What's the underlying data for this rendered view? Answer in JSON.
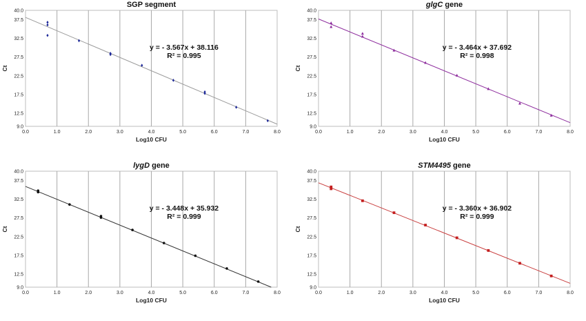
{
  "chart_data": [
    {
      "type": "scatter",
      "title_parts": [
        {
          "text": "SGP",
          "italic": false
        },
        {
          "text": " segment",
          "italic": false
        }
      ],
      "xlabel": "Log10 CFU",
      "ylabel": "Ct",
      "xlim": [
        0,
        8
      ],
      "ylim": [
        9,
        40
      ],
      "xticks": [
        "0.0",
        "1.0",
        "2.0",
        "3.0",
        "4.0",
        "5.0",
        "6.0",
        "7.0",
        "8.0"
      ],
      "yticks": [
        "40.0",
        "37.5",
        "32.5",
        "27.5",
        "22.5",
        "17.5",
        "12.5",
        "9.0"
      ],
      "grid": "vertical",
      "equation": "y = - 3.567x + 38.116",
      "r2": "R² = 0.995",
      "fit": {
        "slope": -3.567,
        "intercept": 38.116
      },
      "color": "#1f2a9a",
      "line_color": "#9a9a9a",
      "marker": "diamond",
      "x": [
        0.7,
        0.7,
        0.7,
        1.7,
        2.7,
        2.7,
        3.7,
        4.7,
        5.7,
        5.7,
        6.7,
        7.7
      ],
      "y": [
        36.8,
        36.1,
        33.3,
        31.9,
        28.5,
        28.2,
        25.3,
        21.3,
        18.2,
        17.8,
        14.1,
        10.5
      ]
    },
    {
      "type": "scatter",
      "title_parts": [
        {
          "text": "glgC",
          "italic": true
        },
        {
          "text": " gene",
          "italic": false
        }
      ],
      "xlabel": "Log10 CFU",
      "ylabel": "Ct",
      "xlim": [
        0,
        8
      ],
      "ylim": [
        9,
        40
      ],
      "xticks": [
        "0.0",
        "1.0",
        "2.0",
        "3.0",
        "4.0",
        "5.0",
        "6.0",
        "7.0",
        "8.0"
      ],
      "yticks": [
        "40.0",
        "37.5",
        "32.5",
        "27.5",
        "22.5",
        "17.5",
        "12.5",
        "9.0"
      ],
      "grid": "vertical",
      "equation": "y = - 3.464x + 37.692",
      "r2": "R² = 0.998",
      "fit": {
        "slope": -3.464,
        "intercept": 37.692
      },
      "color": "#8e2e9e",
      "line_color": "#8e2e9e",
      "marker": "triangle",
      "x": [
        0.4,
        0.4,
        1.4,
        1.4,
        2.4,
        3.4,
        4.4,
        5.4,
        6.4,
        7.4
      ],
      "y": [
        36.6,
        35.6,
        33.8,
        33.0,
        29.3,
        26.0,
        22.6,
        19.0,
        15.1,
        11.9
      ]
    },
    {
      "type": "scatter",
      "title_parts": [
        {
          "text": "lygD",
          "italic": true
        },
        {
          "text": " gene",
          "italic": false
        }
      ],
      "xlabel": "Log10 CFU",
      "ylabel": "Ct",
      "xlim": [
        0,
        8
      ],
      "ylim": [
        9,
        40
      ],
      "xticks": [
        "0.0",
        "1.0",
        "2.0",
        "3.0",
        "4.0",
        "5.0",
        "6.0",
        "7.0",
        "8.0"
      ],
      "yticks": [
        "40.0",
        "37.5",
        "32.5",
        "27.5",
        "22.5",
        "17.5",
        "12.5",
        "9.0"
      ],
      "grid": "vertical",
      "equation": "y = - 3.448x + 35.932",
      "r2": "R² = 0.999",
      "fit": {
        "slope": -3.448,
        "intercept": 35.932
      },
      "color": "#111111",
      "line_color": "#333333",
      "marker": "circle",
      "x": [
        0.4,
        0.4,
        1.4,
        2.4,
        2.4,
        3.4,
        4.4,
        5.4,
        6.4,
        7.4
      ],
      "y": [
        34.8,
        34.4,
        31.1,
        28.0,
        27.6,
        24.3,
        20.8,
        17.4,
        14.0,
        10.5
      ]
    },
    {
      "type": "scatter",
      "title_parts": [
        {
          "text": "STM4495",
          "italic": true
        },
        {
          "text": " gene",
          "italic": false
        }
      ],
      "xlabel": "Log10 CFU",
      "ylabel": "Ct",
      "xlim": [
        0,
        8
      ],
      "ylim": [
        9,
        40
      ],
      "xticks": [
        "0.0",
        "1.0",
        "2.0",
        "3.0",
        "4.0",
        "5.0",
        "6.0",
        "7.0",
        "8.0"
      ],
      "yticks": [
        "40.0",
        "37.5",
        "32.5",
        "27.5",
        "22.5",
        "17.5",
        "12.5",
        "9.0"
      ],
      "grid": "vertical",
      "equation": "y = - 3.360x + 36.902",
      "r2": "R² = 0.999",
      "fit": {
        "slope": -3.36,
        "intercept": 36.902
      },
      "color": "#c41f1f",
      "line_color": "#c83c3c",
      "marker": "square",
      "x": [
        0.4,
        0.4,
        1.4,
        2.4,
        3.4,
        4.4,
        5.4,
        6.4,
        7.4
      ],
      "y": [
        35.8,
        35.3,
        32.1,
        28.9,
        25.6,
        22.2,
        18.8,
        15.4,
        12.0
      ]
    }
  ]
}
